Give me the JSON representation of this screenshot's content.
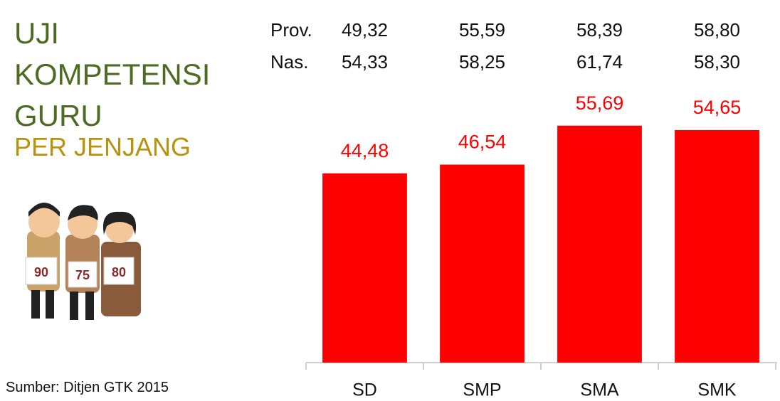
{
  "chart_data": {
    "type": "bar",
    "title": "UJI KOMPETENSI GURU",
    "subtitle": "PER JENJANG",
    "source": "Sumber: Ditjen GTK 2015",
    "categories": [
      "SD",
      "SMP",
      "SMA",
      "SMK"
    ],
    "values": [
      44.48,
      46.54,
      55.69,
      54.65
    ],
    "value_labels": [
      "44,48",
      "46,54",
      "55,69",
      "54,65"
    ],
    "color": "#ff0000",
    "ylim": [
      0,
      63.5
    ],
    "table": {
      "rows": [
        {
          "label": "Prov.",
          "cells": [
            "49,32",
            "55,59",
            "58,39",
            "58,80"
          ]
        },
        {
          "label": "Nas.",
          "cells": [
            "54,33",
            "58,25",
            "61,74",
            "58,30"
          ]
        }
      ]
    },
    "illustration": {
      "signs": [
        "90",
        "75",
        "80"
      ]
    }
  }
}
